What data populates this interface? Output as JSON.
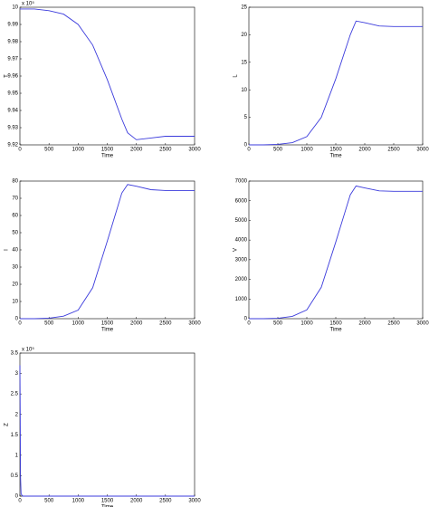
{
  "chart_data": [
    {
      "type": "line",
      "ylabel": "T",
      "xlabel": "Time",
      "annotation": "x 10⁵",
      "color": "#3b3bdc",
      "x": [
        0,
        250,
        500,
        750,
        1000,
        1250,
        1500,
        1750,
        1850,
        2000,
        2250,
        2500,
        2750,
        3000
      ],
      "values": [
        9.999,
        9.999,
        9.998,
        9.996,
        9.99,
        9.978,
        9.958,
        9.935,
        9.927,
        9.923,
        9.924,
        9.925,
        9.925,
        9.925
      ],
      "xlim": [
        0,
        3000
      ],
      "ylim": [
        9.92,
        10
      ],
      "xticks": [
        0,
        500,
        1000,
        1500,
        2000,
        2500,
        3000
      ],
      "yticks": [
        9.92,
        9.93,
        9.94,
        9.95,
        9.96,
        9.97,
        9.98,
        9.99,
        10
      ]
    },
    {
      "type": "line",
      "ylabel": "L",
      "xlabel": "Time",
      "color": "#3b3bdc",
      "x": [
        0,
        250,
        500,
        750,
        1000,
        1250,
        1500,
        1750,
        1850,
        2000,
        2250,
        2500,
        2750,
        3000
      ],
      "values": [
        0,
        0,
        0.1,
        0.4,
        1.5,
        5,
        12,
        20,
        22.5,
        22.2,
        21.6,
        21.5,
        21.5,
        21.5
      ],
      "xlim": [
        0,
        3000
      ],
      "ylim": [
        0,
        25
      ],
      "xticks": [
        0,
        500,
        1000,
        1500,
        2000,
        2500,
        3000
      ],
      "yticks": [
        0,
        5,
        10,
        15,
        20,
        25
      ]
    },
    {
      "type": "line",
      "ylabel": "I",
      "xlabel": "Time",
      "color": "#3b3bdc",
      "x": [
        0,
        250,
        500,
        750,
        1000,
        1250,
        1500,
        1750,
        1850,
        2000,
        2250,
        2500,
        2750,
        3000
      ],
      "values": [
        0,
        0,
        0.3,
        1.5,
        5,
        18,
        45,
        73,
        78,
        77,
        75,
        74.5,
        74.5,
        74.5
      ],
      "xlim": [
        0,
        3000
      ],
      "ylim": [
        0,
        80
      ],
      "xticks": [
        0,
        500,
        1000,
        1500,
        2000,
        2500,
        3000
      ],
      "yticks": [
        0,
        10,
        20,
        30,
        40,
        50,
        60,
        70,
        80
      ]
    },
    {
      "type": "line",
      "ylabel": "V",
      "xlabel": "Time",
      "color": "#3b3bdc",
      "x": [
        0,
        250,
        500,
        750,
        1000,
        1250,
        1500,
        1750,
        1850,
        2000,
        2250,
        2500,
        2750,
        3000
      ],
      "values": [
        0,
        0,
        20,
        120,
        450,
        1600,
        3900,
        6300,
        6750,
        6650,
        6500,
        6480,
        6480,
        6480
      ],
      "xlim": [
        0,
        3000
      ],
      "ylim": [
        0,
        7000
      ],
      "xticks": [
        0,
        500,
        1000,
        1500,
        2000,
        2500,
        3000
      ],
      "yticks": [
        0,
        1000,
        2000,
        3000,
        4000,
        5000,
        6000,
        7000
      ]
    },
    {
      "type": "line",
      "ylabel": "Z",
      "xlabel": "Time",
      "annotation": "x 10⁵",
      "color": "#3b3bdc",
      "x": [
        0,
        5,
        10,
        20,
        50,
        100,
        500,
        1000,
        1500,
        2000,
        2500,
        3000
      ],
      "values": [
        3.2,
        2,
        0.5,
        0.05,
        0,
        0,
        0,
        0,
        0,
        0,
        0,
        0
      ],
      "xlim": [
        0,
        3000
      ],
      "ylim": [
        0,
        3.5
      ],
      "xticks": [
        0,
        500,
        1000,
        1500,
        2000,
        2500,
        3000
      ],
      "yticks": [
        0,
        0.5,
        1,
        1.5,
        2,
        2.5,
        3,
        3.5
      ]
    }
  ]
}
